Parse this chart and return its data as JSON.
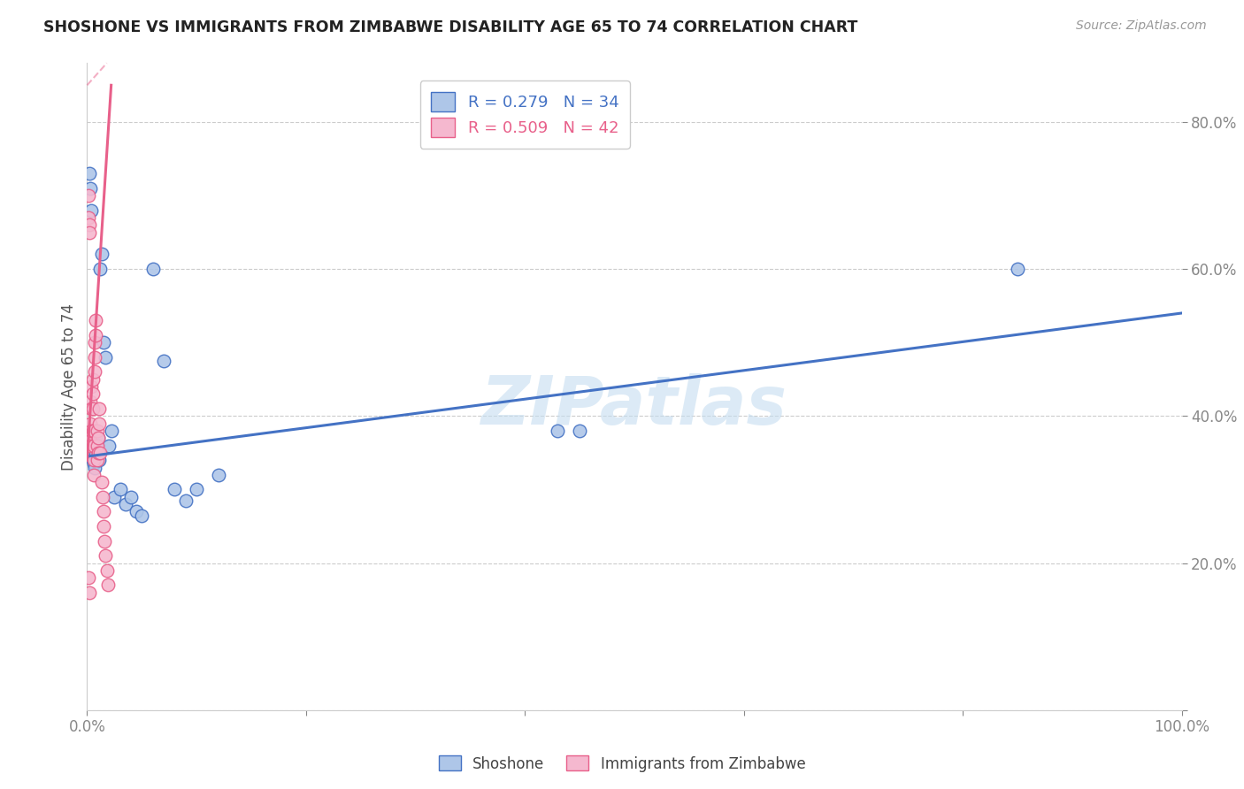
{
  "title": "SHOSHONE VS IMMIGRANTS FROM ZIMBABWE DISABILITY AGE 65 TO 74 CORRELATION CHART",
  "source": "Source: ZipAtlas.com",
  "ylabel": "Disability Age 65 to 74",
  "xlim": [
    0,
    1.0
  ],
  "ylim": [
    0,
    0.88
  ],
  "blue_R": 0.279,
  "blue_N": 34,
  "pink_R": 0.509,
  "pink_N": 42,
  "blue_color": "#aec6e8",
  "pink_color": "#f5b8cf",
  "blue_line_color": "#4472c4",
  "pink_line_color": "#e8608a",
  "watermark": "ZIPatlas",
  "background_color": "#ffffff",
  "blue_points_x": [
    0.002,
    0.003,
    0.004,
    0.005,
    0.006,
    0.007,
    0.008,
    0.009,
    0.01,
    0.011,
    0.012,
    0.013,
    0.015,
    0.017,
    0.02,
    0.022,
    0.025,
    0.03,
    0.035,
    0.04,
    0.045,
    0.05,
    0.06,
    0.07,
    0.08,
    0.09,
    0.1,
    0.12,
    0.43,
    0.45,
    0.85,
    0.002,
    0.003,
    0.004
  ],
  "blue_points_y": [
    0.345,
    0.35,
    0.355,
    0.34,
    0.335,
    0.33,
    0.35,
    0.36,
    0.37,
    0.34,
    0.6,
    0.62,
    0.5,
    0.48,
    0.36,
    0.38,
    0.29,
    0.3,
    0.28,
    0.29,
    0.27,
    0.265,
    0.6,
    0.475,
    0.3,
    0.285,
    0.3,
    0.32,
    0.38,
    0.38,
    0.6,
    0.73,
    0.71,
    0.68
  ],
  "pink_points_x": [
    0.001,
    0.001,
    0.002,
    0.002,
    0.002,
    0.003,
    0.003,
    0.003,
    0.004,
    0.004,
    0.004,
    0.005,
    0.005,
    0.005,
    0.005,
    0.006,
    0.006,
    0.006,
    0.006,
    0.007,
    0.007,
    0.007,
    0.008,
    0.008,
    0.009,
    0.009,
    0.009,
    0.01,
    0.01,
    0.011,
    0.011,
    0.012,
    0.013,
    0.014,
    0.015,
    0.015,
    0.016,
    0.017,
    0.018,
    0.019,
    0.001,
    0.002
  ],
  "pink_points_y": [
    0.67,
    0.7,
    0.66,
    0.65,
    0.37,
    0.42,
    0.39,
    0.36,
    0.44,
    0.41,
    0.38,
    0.45,
    0.43,
    0.41,
    0.38,
    0.38,
    0.36,
    0.34,
    0.32,
    0.5,
    0.48,
    0.46,
    0.53,
    0.51,
    0.38,
    0.36,
    0.34,
    0.37,
    0.35,
    0.41,
    0.39,
    0.35,
    0.31,
    0.29,
    0.27,
    0.25,
    0.23,
    0.21,
    0.19,
    0.17,
    0.18,
    0.16
  ],
  "blue_line_x0": 0.0,
  "blue_line_y0": 0.345,
  "blue_line_x1": 1.0,
  "blue_line_y1": 0.54,
  "pink_line_x0": 0.0,
  "pink_line_y0": 0.34,
  "pink_line_x1": 0.022,
  "pink_line_y1": 0.85,
  "pink_line_dashed_x0": 0.0,
  "pink_line_dashed_y0": 0.85,
  "pink_line_dashed_x1": 0.018,
  "pink_line_dashed_y1": 0.88
}
